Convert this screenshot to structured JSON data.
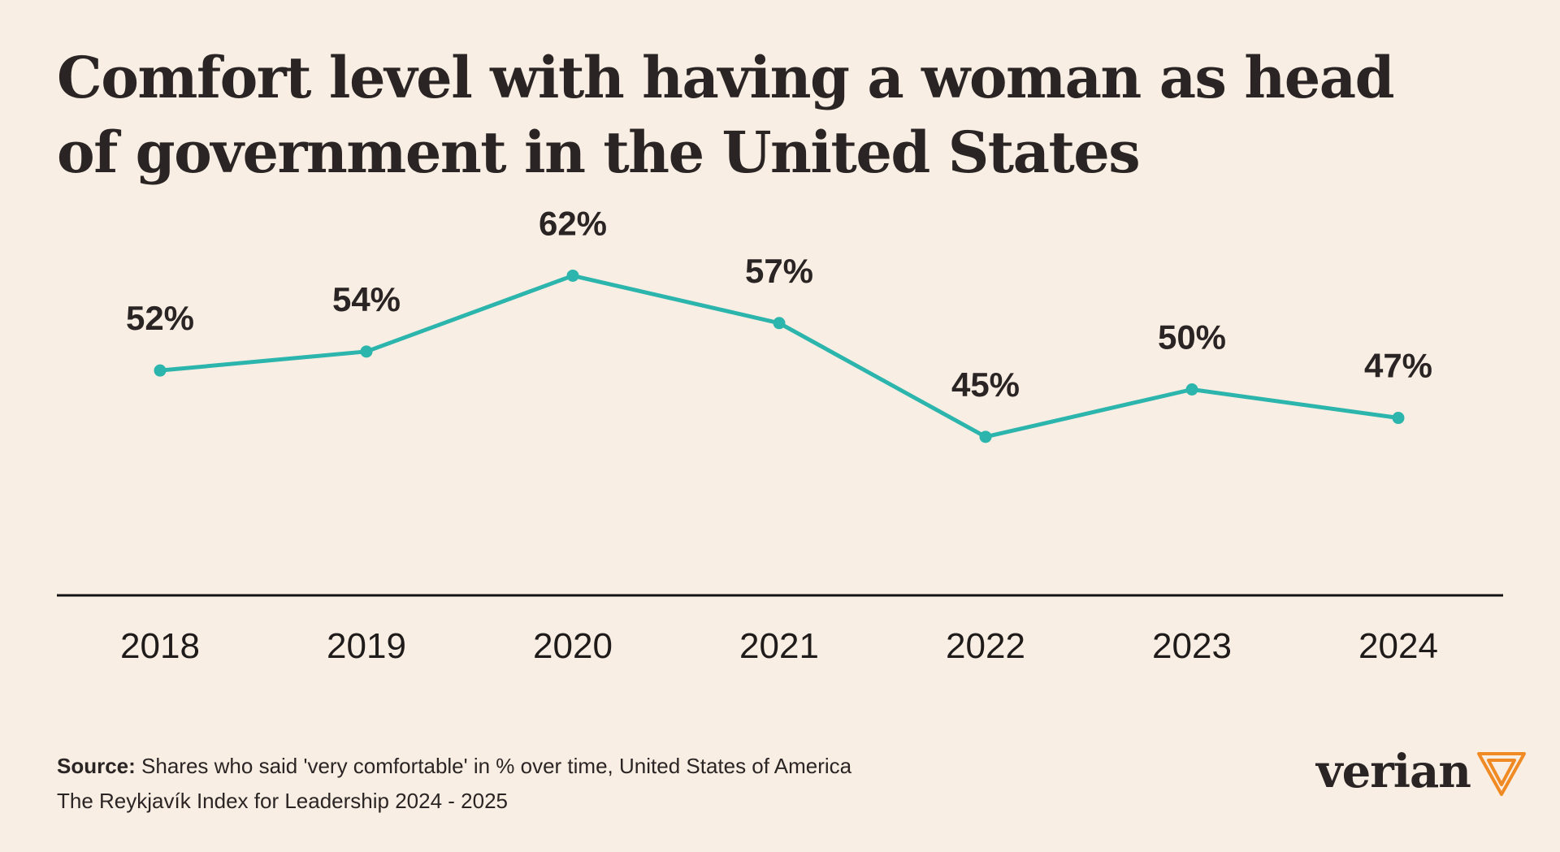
{
  "title": "Comfort level with having a woman as head of government in the United States",
  "chart_data": {
    "type": "line",
    "title": "Comfort level with having a woman as head of government in the United States",
    "categories": [
      "2018",
      "2019",
      "2020",
      "2021",
      "2022",
      "2023",
      "2024"
    ],
    "series": [
      {
        "name": "Very comfortable (%)",
        "values": [
          52,
          54,
          62,
          57,
          45,
          50,
          47
        ]
      }
    ],
    "data_labels": [
      "52%",
      "54%",
      "62%",
      "57%",
      "45%",
      "50%",
      "47%"
    ],
    "xlabel": "",
    "ylabel": "",
    "ylim": [
      40,
      70
    ],
    "grid": false,
    "line_color": "#2bb5ad",
    "axis_color": "#111111"
  },
  "footer": {
    "source_label": "Source:",
    "source_text": "Shares who said 'very comfortable' in % over time, United States of America",
    "index_text": "The Reykjavík Index for Leadership 2024 - 2025"
  },
  "brand": {
    "name": "verian",
    "logo_icon": "verian-logo-icon",
    "logo_color": "#f08a24"
  }
}
